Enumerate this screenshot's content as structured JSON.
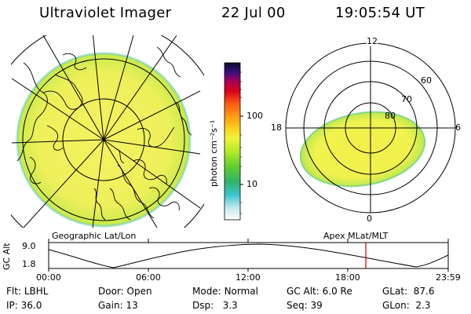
{
  "header": {
    "title": "Ultraviolet Imager",
    "date": "22 Jul 00",
    "time": "19:05:54 UT"
  },
  "colorbar": {
    "label": "photon cm⁻²s⁻¹",
    "ticks": [
      "100",
      "10"
    ],
    "scale": "log"
  },
  "polar": {
    "mlt_labels": {
      "top": "12",
      "left": "18",
      "right": "6",
      "bottom": "0"
    },
    "lat_labels": [
      "60",
      "70",
      "80"
    ]
  },
  "panel_titles": {
    "left": "Geographic Lat/Lon",
    "right": "Apex MLat/MLT"
  },
  "altitude_plot": {
    "axis_title": "GC Alt",
    "y_top": "9.0",
    "y_bottom": "1.8",
    "time_ticks": [
      "00:00",
      "06:00",
      "12:00",
      "18:00",
      "23:59"
    ],
    "marker_color": "#cc0000"
  },
  "info": {
    "row1": [
      {
        "label": "Flt:",
        "value": "LBHL"
      },
      {
        "label": "Door:",
        "value": "Open"
      },
      {
        "label": "Mode:",
        "value": "Normal"
      },
      {
        "label": "GC Alt:",
        "value": "6.0 Re"
      },
      {
        "label": "GLat:",
        "value": "87.6"
      }
    ],
    "row2": [
      {
        "label": "IP:",
        "value": "36.0"
      },
      {
        "label": "Gain:",
        "value": "13"
      },
      {
        "label": "Dsp:",
        "value": "3.3"
      },
      {
        "label": "Seq:",
        "value": "39"
      },
      {
        "label": "GLon:",
        "value": "2.3"
      }
    ]
  }
}
